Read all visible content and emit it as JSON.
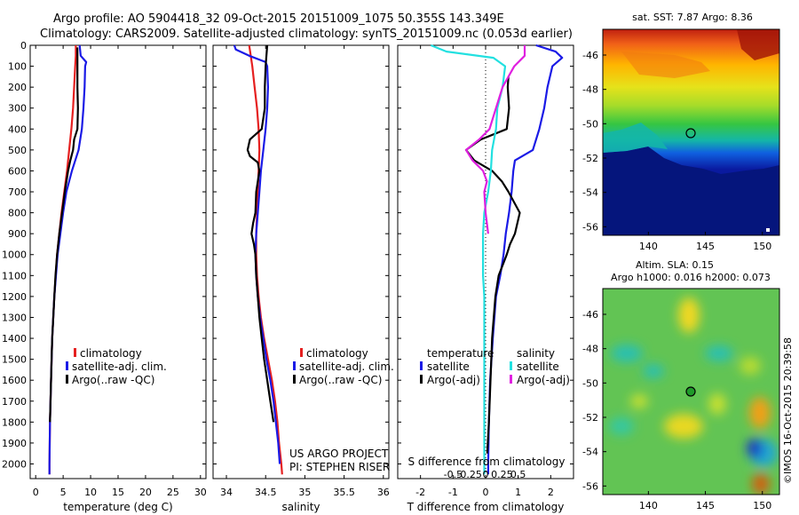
{
  "header": {
    "title_line1": "Argo profile: AO 5904418_32 09-Oct-2015 20151009_1075 50.355S 143.349E",
    "title_line2": "Climatology: CARS2009. Satellite-adjusted climatology: synTS_20151009.nc (0.053d earlier)"
  },
  "credits": {
    "project": "US ARGO PROJECT",
    "pi": "PI: STEPHEN RISER",
    "imos": "©IMOS 16-Oct-2015 20:39:58"
  },
  "colors": {
    "climatology": "#e52020",
    "satellite": "#1a1ae6",
    "argo": "#000000",
    "cyan": "#22e0e0",
    "magenta": "#e020e0"
  },
  "chart_data": [
    {
      "type": "line",
      "id": "temperature",
      "xlabel": "temperature (deg C)",
      "ylabel": "",
      "xlim": [
        -1,
        31
      ],
      "ylim": [
        2070,
        0
      ],
      "xticks": [
        0,
        5,
        10,
        15,
        20,
        25,
        30
      ],
      "yticks": [
        0,
        100,
        200,
        300,
        400,
        500,
        600,
        700,
        800,
        900,
        1000,
        1100,
        1200,
        1300,
        1400,
        1500,
        1600,
        1700,
        1800,
        1900,
        2000
      ],
      "legend": [
        "climatology",
        "satellite-adj. clim.",
        "Argo(..raw -QC)"
      ],
      "legend_position": "lower-center",
      "series": [
        {
          "name": "climatology",
          "color": "#e52020",
          "y": [
            0,
            50,
            100,
            200,
            300,
            400,
            500,
            600,
            700,
            800,
            900,
            1000,
            1200,
            1400,
            1600,
            1800,
            2000,
            2050
          ],
          "x": [
            7.3,
            7.3,
            7.2,
            7.0,
            6.8,
            6.5,
            6.1,
            5.7,
            5.2,
            4.7,
            4.3,
            3.9,
            3.4,
            3.0,
            2.8,
            2.6,
            2.5,
            2.5
          ]
        },
        {
          "name": "satellite-adj. clim.",
          "color": "#1a1ae6",
          "y": [
            0,
            50,
            80,
            100,
            200,
            300,
            400,
            500,
            600,
            700,
            800,
            900,
            1000,
            1200,
            1400,
            1600,
            1800,
            2000,
            2050
          ],
          "x": [
            8.0,
            8.2,
            9.2,
            9.0,
            8.9,
            8.7,
            8.4,
            7.8,
            6.6,
            5.6,
            5.0,
            4.5,
            4.0,
            3.4,
            3.0,
            2.8,
            2.6,
            2.5,
            2.5
          ]
        },
        {
          "name": "Argo(..raw -QC)",
          "color": "#000000",
          "y": [
            10,
            50,
            100,
            200,
            300,
            400,
            450,
            500,
            550,
            600,
            700,
            800,
            900,
            1000,
            1100,
            1200,
            1300,
            1400,
            1500,
            1600,
            1700,
            1800
          ],
          "x": [
            7.6,
            7.6,
            7.6,
            7.6,
            7.7,
            7.6,
            7.0,
            6.8,
            6.3,
            5.9,
            5.3,
            4.8,
            4.3,
            3.9,
            3.6,
            3.4,
            3.2,
            3.0,
            2.9,
            2.8,
            2.7,
            2.6
          ]
        }
      ]
    },
    {
      "type": "line",
      "id": "salinity",
      "xlabel": "salinity",
      "ylabel": "",
      "xlim": [
        33.83,
        36.07
      ],
      "ylim": [
        2070,
        0
      ],
      "xticks": [
        34,
        34.5,
        35,
        35.5,
        36
      ],
      "legend": [
        "climatology",
        "satellite-adj. clim.",
        "Argo(..raw -QC)"
      ],
      "legend_position": "lower-center",
      "series": [
        {
          "name": "climatology",
          "color": "#e52020",
          "y": [
            0,
            100,
            200,
            300,
            400,
            500,
            600,
            700,
            800,
            900,
            1000,
            1100,
            1200,
            1300,
            1400,
            1500,
            1600,
            1700,
            1800,
            1900,
            2000,
            2050
          ],
          "x": [
            34.29,
            34.33,
            34.36,
            34.39,
            34.41,
            34.42,
            34.41,
            34.4,
            34.39,
            34.38,
            34.38,
            34.39,
            34.41,
            34.44,
            34.48,
            34.53,
            34.58,
            34.62,
            34.65,
            34.67,
            34.7,
            34.71
          ]
        },
        {
          "name": "satellite-adj. clim.",
          "color": "#1a1ae6",
          "y": [
            0,
            20,
            50,
            80,
            100,
            200,
            300,
            400,
            500,
            600,
            700,
            800,
            900,
            1000,
            1100,
            1200,
            1300,
            1400,
            1500,
            1600,
            1700,
            1800,
            1900,
            2000
          ],
          "x": [
            34.1,
            34.12,
            34.29,
            34.5,
            34.52,
            34.53,
            34.52,
            34.5,
            34.47,
            34.44,
            34.42,
            34.4,
            34.38,
            34.37,
            34.38,
            34.4,
            34.43,
            34.47,
            34.51,
            34.56,
            34.6,
            34.63,
            34.66,
            34.68
          ]
        },
        {
          "name": "Argo(..raw -QC)",
          "color": "#000000",
          "y": [
            0,
            100,
            200,
            300,
            400,
            450,
            500,
            530,
            560,
            600,
            700,
            800,
            850,
            900,
            950,
            1000,
            1100,
            1200,
            1300,
            1400,
            1500,
            1600,
            1700,
            1800
          ],
          "x": [
            34.52,
            34.5,
            34.49,
            34.49,
            34.45,
            34.3,
            34.27,
            34.3,
            34.4,
            34.42,
            34.38,
            34.37,
            34.34,
            34.32,
            34.35,
            34.37,
            34.38,
            34.4,
            34.42,
            34.45,
            34.48,
            34.52,
            34.56,
            34.6
          ]
        }
      ]
    },
    {
      "type": "line",
      "id": "difference",
      "xlabel": "T difference from climatology",
      "xlabel_top": "S difference from climatology",
      "ylabel": "",
      "xlim": [
        -2.7,
        2.7
      ],
      "ylim": [
        2070,
        0
      ],
      "xticks": [
        -2,
        -1,
        0,
        1,
        2
      ],
      "xticks_s": [
        -0.5,
        -0.25,
        0,
        0.25,
        0.5
      ],
      "legend_temperature_heading": "temperature",
      "legend_salinity_heading": "salinity",
      "legend_temperature": [
        "satellite",
        "Argo(-adj)"
      ],
      "legend_salinity": [
        "satellite",
        "Argo(-adj)"
      ],
      "legend_position": "lower-center",
      "series": [
        {
          "name": "T satellite",
          "color": "#1a1ae6",
          "y": [
            0,
            30,
            60,
            100,
            200,
            300,
            400,
            500,
            550,
            600,
            700,
            800,
            900,
            1000,
            1100,
            1200,
            1400,
            1600,
            1800,
            2000,
            2050
          ],
          "x": [
            1.55,
            2.15,
            2.35,
            2.05,
            1.9,
            1.8,
            1.65,
            1.45,
            0.9,
            0.85,
            0.8,
            0.72,
            0.62,
            0.55,
            0.45,
            0.32,
            0.22,
            0.14,
            0.1,
            0.08,
            0.08
          ]
        },
        {
          "name": "T Argo(-adj)",
          "color": "#000000",
          "y": [
            150,
            200,
            300,
            400,
            450,
            500,
            550,
            600,
            650,
            700,
            800,
            900,
            950,
            1000,
            1100,
            1200,
            1400,
            1600,
            1800,
            1950
          ],
          "x": [
            0.7,
            0.68,
            0.72,
            0.65,
            -0.15,
            -0.6,
            -0.35,
            0.2,
            0.5,
            0.7,
            1.05,
            0.9,
            0.75,
            0.65,
            0.4,
            0.3,
            0.2,
            0.15,
            0.1,
            0.05
          ]
        },
        {
          "name": "S satellite",
          "color": "#22e0e0",
          "y": [
            0,
            30,
            60,
            100,
            200,
            300,
            400,
            500,
            600,
            700,
            800,
            900,
            1000,
            1100,
            1200,
            1400,
            1600,
            1800,
            2000,
            2050
          ],
          "x": [
            -0.42,
            -0.3,
            0.06,
            0.15,
            0.13,
            0.09,
            0.08,
            0.05,
            0.04,
            0.02,
            -0.01,
            -0.02,
            -0.02,
            -0.02,
            -0.01,
            -0.01,
            -0.01,
            -0.01,
            -0.01,
            -0.01
          ]
        },
        {
          "name": "S Argo(-adj)",
          "color": "#e020e0",
          "y": [
            0,
            50,
            100,
            200,
            300,
            400,
            450,
            500,
            550,
            600,
            650,
            700,
            800,
            900
          ],
          "x": [
            0.3,
            0.3,
            0.22,
            0.13,
            0.08,
            0.03,
            -0.05,
            -0.15,
            -0.1,
            -0.02,
            0.01,
            -0.01,
            0.0,
            0.02
          ]
        }
      ]
    },
    {
      "type": "heatmap",
      "id": "sst_map",
      "title": "sat. SST: 7.87 Argo: 8.36",
      "xlim": [
        136,
        151.5
      ],
      "ylim": [
        -56.5,
        -44.5
      ],
      "xticks": [
        140,
        145,
        150
      ],
      "yticks": [
        -46,
        -48,
        -50,
        -52,
        -54,
        -56
      ],
      "marker": {
        "lon": 143.349,
        "lat": -50.355
      }
    },
    {
      "type": "heatmap",
      "id": "sla_map",
      "title": "Altim. SLA: 0.15",
      "subtitle": "Argo h1000: 0.016 h2000: 0.073",
      "xlim": [
        136,
        151.5
      ],
      "ylim": [
        -56.5,
        -44.5
      ],
      "xticks": [
        140,
        145,
        150
      ],
      "yticks": [
        -46,
        -48,
        -50,
        -52,
        -54,
        -56
      ],
      "marker": {
        "lon": 143.349,
        "lat": -50.355
      }
    }
  ]
}
